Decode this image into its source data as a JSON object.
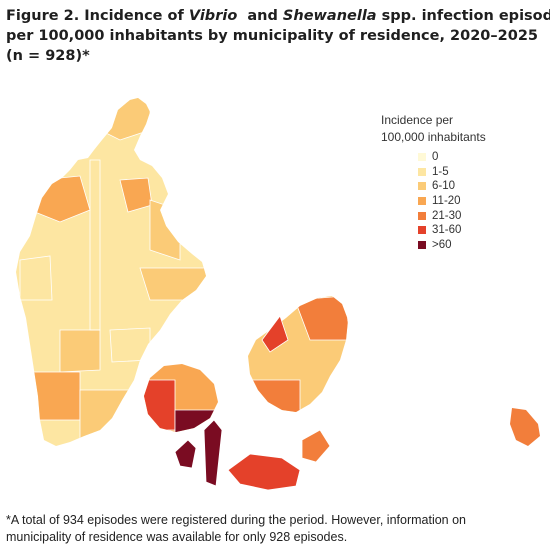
{
  "title": {
    "p1": "Figure 2. Incidence of ",
    "vibrio": "Vibrio",
    "p2": "  and ",
    "shewanella": "Shewanella",
    "p3": " spp. infection episodes",
    "line2": "per 100,000 inhabitants by municipality of residence, 2020–2025",
    "line3": "(n = 928)*"
  },
  "legend": {
    "title_line1": "Incidence per",
    "title_line2": "100,000 inhabitants",
    "items": [
      {
        "label": "0",
        "color": "#FFF9D6"
      },
      {
        "label": "1-5",
        "color": "#FDE6A2"
      },
      {
        "label": "6-10",
        "color": "#FBCB77"
      },
      {
        "label": "11-20",
        "color": "#F9A752"
      },
      {
        "label": "21-30",
        "color": "#F27E3B"
      },
      {
        "label": "31-60",
        "color": "#E4412A"
      },
      {
        "label": ">60",
        "color": "#7A0C22"
      }
    ]
  },
  "footnote": {
    "line1": "*A total of 934 episodes were registered during the period. However, information on",
    "line2": "municipality of residence was available for only 928 episodes."
  },
  "map_data": {
    "region": "Denmark",
    "unit": "municipality",
    "colors": {
      "0": "#FFF9D6",
      "1-5": "#FDE6A2",
      "6-10": "#FBCB77",
      "11-20": "#F9A752",
      "21-30": "#F27E3B",
      "31-60": "#E4412A",
      ">60": "#7A0C22",
      "border": "#ffffff"
    }
  }
}
